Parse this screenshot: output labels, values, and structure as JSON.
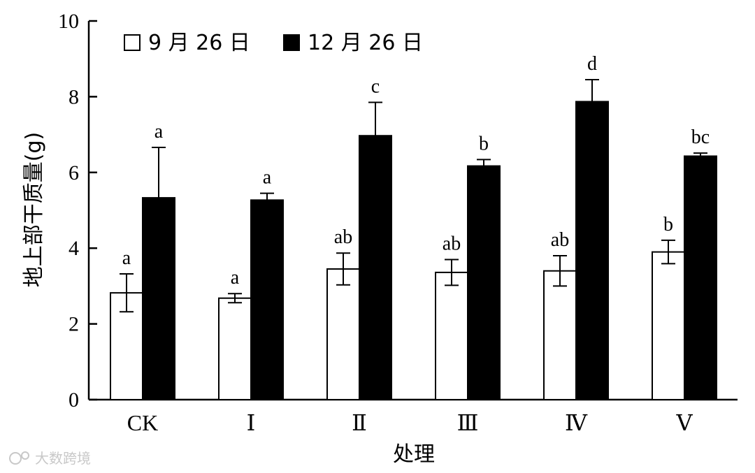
{
  "chart_data": {
    "type": "bar",
    "categories": [
      "CK",
      "Ⅰ",
      "Ⅱ",
      "Ⅲ",
      "Ⅳ",
      "Ⅴ"
    ],
    "series": [
      {
        "name": "9 月 26 日",
        "color": "#ffffff",
        "values": [
          2.82,
          2.68,
          3.45,
          3.36,
          3.4,
          3.9
        ],
        "errors": [
          0.5,
          0.12,
          0.42,
          0.34,
          0.4,
          0.31
        ],
        "labels": [
          "a",
          "a",
          "ab",
          "ab",
          "ab",
          "b"
        ]
      },
      {
        "name": "12 月 26 日",
        "color": "#000000",
        "values": [
          5.33,
          5.27,
          6.97,
          6.17,
          7.87,
          6.43
        ],
        "errors": [
          1.33,
          0.18,
          0.88,
          0.17,
          0.58,
          0.08
        ],
        "labels": [
          "a",
          "a",
          "c",
          "b",
          "d",
          "bc"
        ]
      }
    ],
    "xlabel": "处理",
    "ylabel": "地上部干质量(g)",
    "ylim": [
      0,
      10
    ],
    "yticks": [
      0,
      2,
      4,
      6,
      8,
      10
    ],
    "grid": false,
    "legend": "top-left"
  },
  "watermark": "大数跨境"
}
